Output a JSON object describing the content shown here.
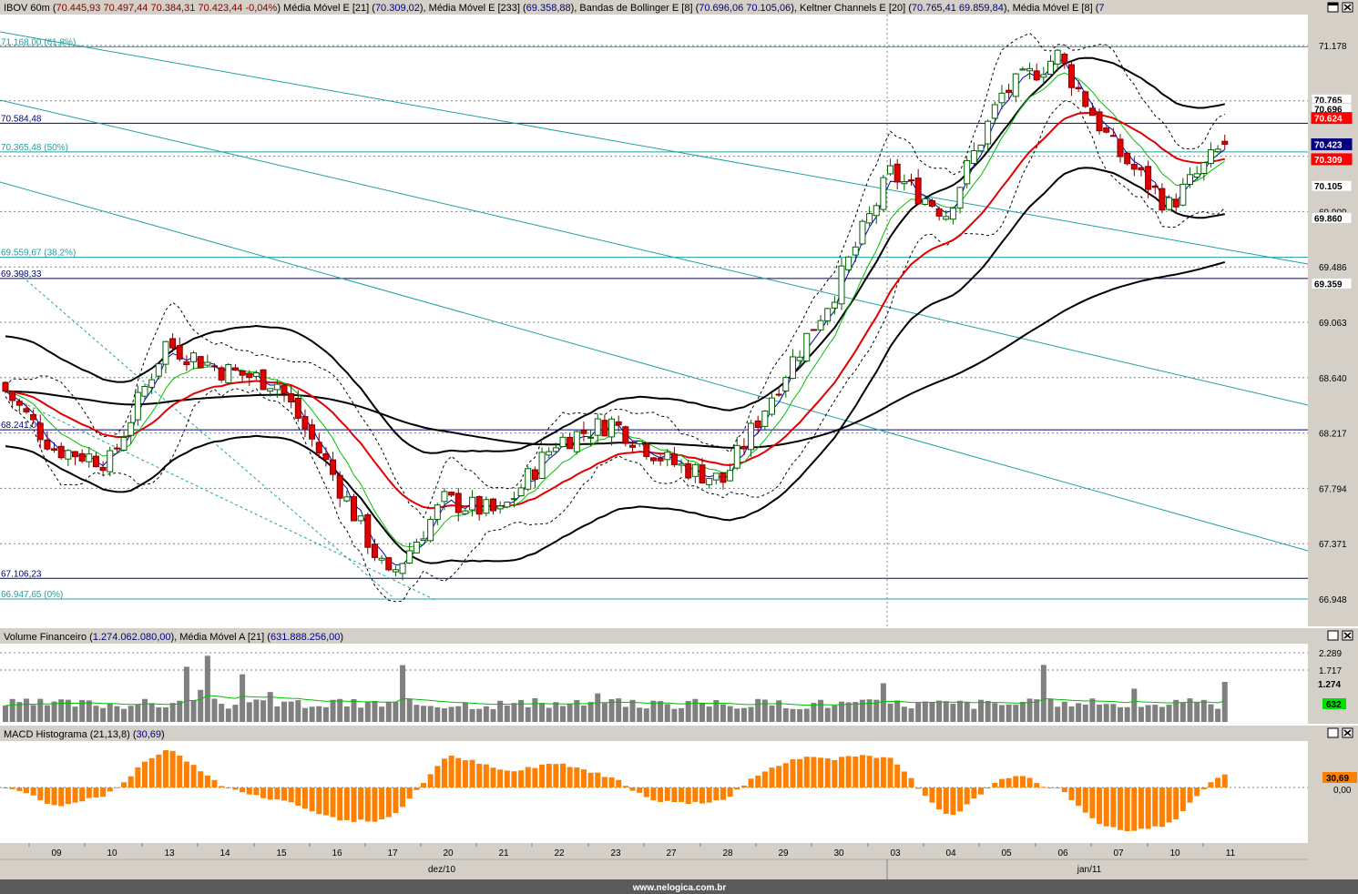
{
  "header": {
    "symbol": "IBOV 60m",
    "ohlc": "70.445,93  70.497,44  70.384,31  70.423,44  -0,04%",
    "indicators": [
      {
        "label": "Média Móvel E [21]",
        "value": "70.309,02"
      },
      {
        "label": "Média Móvel E [233]",
        "value": "69.358,88"
      },
      {
        "label": "Bandas de Bollinger E [8]",
        "value": "70.696,06  70.105,06"
      },
      {
        "label": "Keltner Channels E [20]",
        "value": "70.765,41  69.859,84"
      },
      {
        "label": "Média Móvel E [8]",
        "value": "7"
      }
    ]
  },
  "price_axis": {
    "ticks": [
      "71.178",
      "70.755",
      "70.332",
      "69.909",
      "69.486",
      "69.063",
      "68.640",
      "68.217",
      "67.794",
      "67.371",
      "66.948"
    ],
    "value_labels": [
      {
        "text": "70.765",
        "value": 70765,
        "bg": "#ffffff",
        "fg": "#000000"
      },
      {
        "text": "70.696",
        "value": 70696,
        "bg": "#ffffff",
        "fg": "#000000"
      },
      {
        "text": "70.624",
        "value": 70624,
        "bg": "#ff0000",
        "fg": "#ffffff"
      },
      {
        "text": "70.423",
        "value": 70423,
        "bg": "#000080",
        "fg": "#ffffff"
      },
      {
        "text": "70.309",
        "value": 70309,
        "bg": "#ff0000",
        "fg": "#ffffff"
      },
      {
        "text": "70.105",
        "value": 70105,
        "bg": "#ffffff",
        "fg": "#000000"
      },
      {
        "text": "69.860",
        "value": 69860,
        "bg": "#ffffff",
        "fg": "#000000"
      },
      {
        "text": "69.359",
        "value": 69359,
        "bg": "#ffffff",
        "fg": "#000000"
      }
    ]
  },
  "horizontal_lines": [
    {
      "text": "71.168,00 (61,8%)",
      "value": 71168,
      "color": "#20a0a0"
    },
    {
      "text": "70.584,48",
      "value": 70584,
      "color": "#000080"
    },
    {
      "text": "70.365,48 (50%)",
      "value": 70365,
      "color": "#20a0a0"
    },
    {
      "text": "69.559,67 (38,2%)",
      "value": 69560,
      "color": "#20a0a0"
    },
    {
      "text": "69.398,33",
      "value": 69398,
      "color": "#000080"
    },
    {
      "text": "68.241,00",
      "value": 68241,
      "color": "#000080"
    },
    {
      "text": "67.106,23",
      "value": 67106,
      "color": "#000080"
    },
    {
      "text": "66.947,65 (0%)",
      "value": 66948,
      "color": "#20a0a0"
    }
  ],
  "volume_panel": {
    "title": "Volume Financeiro",
    "value": "1.274.062.080,00",
    "ma_label": "Média Móvel A [21]",
    "ma_value": "631.888.256,00",
    "ticks": [
      "2.289",
      "1.717"
    ],
    "badge_value": "1.274",
    "badge_ma": "632"
  },
  "macd_panel": {
    "title": "MACD Histograma (21,13,8)",
    "value": "30,69",
    "badge_value": "30,69",
    "zero_label": "0,00"
  },
  "x_axis": {
    "days": [
      "09",
      "10",
      "13",
      "14",
      "15",
      "16",
      "17",
      "20",
      "21",
      "22",
      "23",
      "27",
      "28",
      "29",
      "30",
      "03",
      "04",
      "05",
      "06",
      "07",
      "10",
      "11"
    ],
    "months": [
      "dez/10",
      "jan/11"
    ]
  },
  "footer": {
    "watermark": "www.nelogica.com.br"
  },
  "colors": {
    "up": "#00a000",
    "down": "#e00000",
    "ma21": "#e00000",
    "ma8": "#0000c0",
    "ma233": "#000000",
    "macd": "#ff8000",
    "grid": "#808080",
    "frame": "#d4d0c8"
  },
  "chart_data": [
    {
      "type": "candlestick",
      "title": "IBOV 60m",
      "ylim": [
        66700,
        71500
      ],
      "y_ticks": [
        71178,
        70755,
        70332,
        69909,
        69486,
        69063,
        68640,
        68217,
        67794,
        67371,
        66948
      ],
      "categories": [
        "09",
        "10",
        "13",
        "14",
        "15",
        "16",
        "17",
        "20",
        "21",
        "22",
        "23",
        "27",
        "28",
        "29",
        "30",
        "03",
        "04",
        "05",
        "06",
        "07",
        "10",
        "11"
      ],
      "daily_close_approx": [
        68100,
        68000,
        68900,
        68700,
        68600,
        67900,
        67100,
        67700,
        67600,
        68150,
        68300,
        68000,
        67850,
        68600,
        69300,
        70200,
        69900,
        70800,
        71100,
        70400,
        69950,
        70423
      ],
      "series": [
        {
          "name": "Média Móvel E [21]",
          "last": 70309.02
        },
        {
          "name": "Média Móvel E [233]",
          "last": 69358.88
        },
        {
          "name": "Bandas de Bollinger E [8]",
          "upper": 70696.06,
          "lower": 70105.06
        },
        {
          "name": "Keltner Channels E [20]",
          "upper": 70765.41,
          "lower": 69859.84
        }
      ],
      "last": {
        "open": 70445.93,
        "high": 70497.44,
        "low": 70384.31,
        "close": 70423.44,
        "change_pct": -0.04
      }
    },
    {
      "type": "bar",
      "title": "Volume Financeiro",
      "last_value": 1274062080,
      "ma_value": 631888256,
      "y_ticks": [
        2.289,
        1.717
      ]
    },
    {
      "type": "bar",
      "title": "MACD Histograma (21,13,8)",
      "last_value": 30.69,
      "zero": 0
    }
  ]
}
